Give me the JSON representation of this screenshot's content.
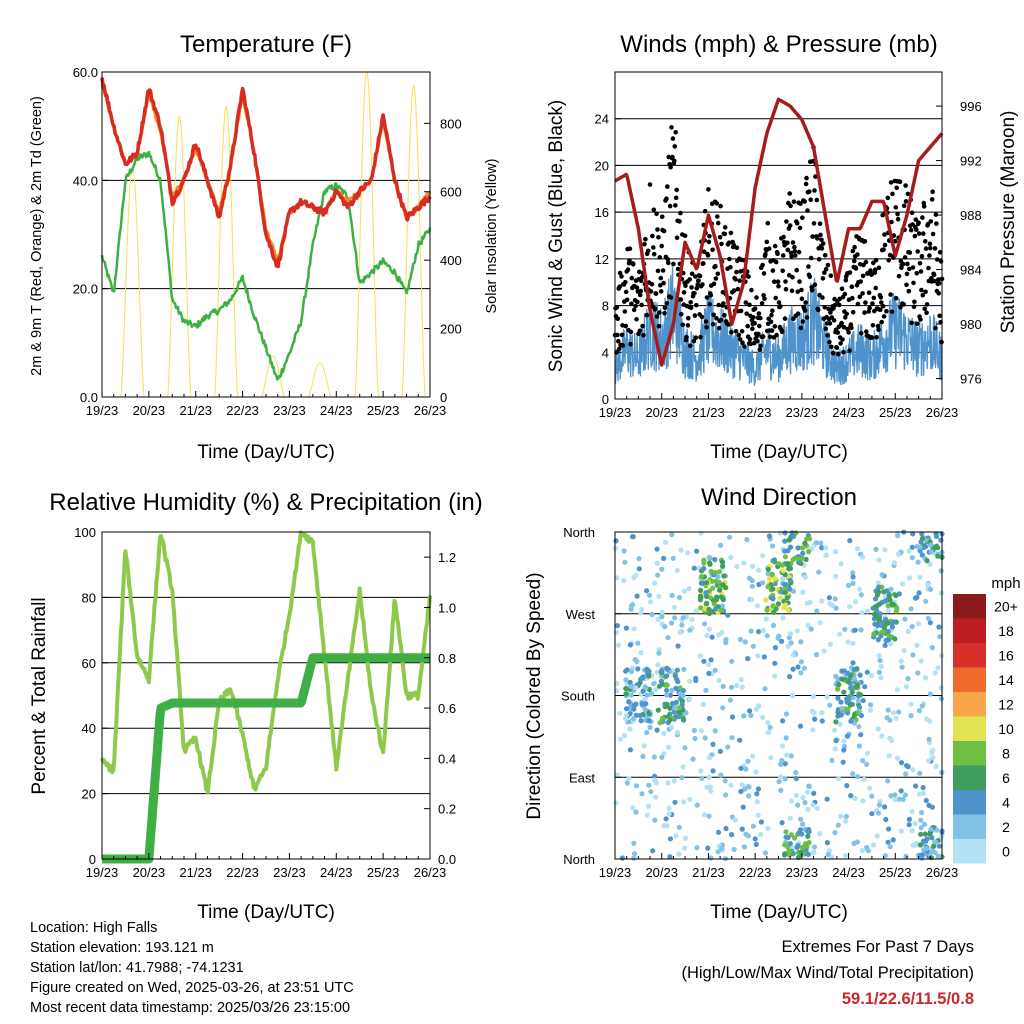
{
  "x_ticks": [
    "19/23",
    "20/23",
    "21/23",
    "22/23",
    "23/23",
    "24/23",
    "25/23",
    "26/23"
  ],
  "panels": {
    "temperature": {
      "title": "Temperature (F)",
      "xlabel": "Time (Day/UTC)",
      "ylabel_left": "2m & 9m T (Red, Orange) & 2m Td (Green)",
      "ylabel_right": "Solar Insolation (Yellow)",
      "left_ticks": [
        "0.0",
        "20.0",
        "40.0",
        "60.0"
      ],
      "right_ticks": [
        "0",
        "200",
        "400",
        "600",
        "800"
      ]
    },
    "winds": {
      "title": "Winds (mph) & Pressure (mb)",
      "xlabel": "Time (Day/UTC)",
      "ylabel_left": "Sonic Wind & Gust (Blue, Black)",
      "ylabel_right": "Station Pressure (Maroon)",
      "left_ticks": [
        "0",
        "4",
        "8",
        "12",
        "16",
        "20",
        "24"
      ],
      "right_ticks": [
        "976",
        "980",
        "984",
        "988",
        "992",
        "996"
      ]
    },
    "humidity": {
      "title": "Relative Humidity (%) & Precipitation (in)",
      "xlabel": "Time (Day/UTC)",
      "ylabel_left": "Percent & Total Rainfall",
      "left_ticks": [
        "0",
        "20",
        "40",
        "60",
        "80",
        "100"
      ],
      "right_ticks": [
        "0.0",
        "0.2",
        "0.4",
        "0.6",
        "0.8",
        "1.0",
        "1.2"
      ]
    },
    "direction": {
      "title": "Wind Direction",
      "xlabel": "Time (Day/UTC)",
      "ylabel_left": "Direction (Colored By Speed)",
      "left_ticks": [
        "North",
        "East",
        "South",
        "West",
        "North"
      ],
      "colorbar_title": "mph",
      "colorbar_labels": [
        "0",
        "2",
        "4",
        "6",
        "8",
        "10",
        "12",
        "14",
        "16",
        "18",
        "20+"
      ],
      "colorbar_colors": [
        "#b3e1f5",
        "#82c1e8",
        "#4f93cc",
        "#3f9d5d",
        "#6fbf45",
        "#e3e253",
        "#f7a64a",
        "#ef6a2c",
        "#d7302b",
        "#bc1e23",
        "#8a1a1c"
      ]
    }
  },
  "colors": {
    "temp_2m": "#d62d20",
    "temp_9m": "#f4842c",
    "dewpoint": "#3cb043",
    "solar": "#f7df5a",
    "wind": "#4f93cc",
    "gust": "#000000",
    "pressure": "#a51c1c",
    "humidity": "#8fc94c",
    "rain": "#3fae44",
    "extremes": "#c8282d"
  },
  "info": {
    "location": "Location: High Falls",
    "elevation": "Station elevation: 193.121 m",
    "latlon": "Station lat/lon: 41.7988; -74.1231",
    "created": "Figure created on Wed, 2025-03-26, at 23:51 UTC",
    "recent": "Most recent data timestamp: 2025/03/26 23:15:00"
  },
  "extremes": {
    "line1": "Extremes For Past 7 Days",
    "line2": "(High/Low/Max Wind/Total Precipitation)",
    "values": "59.1/22.6/11.5/0.8"
  },
  "chart_data": [
    {
      "type": "line",
      "title": "Temperature (F)",
      "x_days": [
        0,
        0.25,
        0.5,
        0.75,
        1,
        1.25,
        1.5,
        1.75,
        2,
        2.25,
        2.5,
        2.75,
        3,
        3.25,
        3.5,
        3.75,
        4,
        4.25,
        4.5,
        4.75,
        5,
        5.25,
        5.5,
        5.75,
        6,
        6.25,
        6.5,
        6.75,
        7
      ],
      "series": [
        {
          "name": "2m T",
          "values": [
            59,
            50,
            43,
            45,
            57,
            50,
            36,
            40,
            47,
            40,
            33,
            43,
            57,
            45,
            30,
            24,
            34,
            36,
            35,
            34,
            38,
            35,
            38,
            40,
            52,
            40,
            33,
            35,
            37
          ]
        },
        {
          "name": "9m T",
          "values": [
            58,
            50,
            43,
            45,
            56,
            49,
            37,
            40,
            46,
            40,
            34,
            43,
            56,
            45,
            31,
            25,
            34,
            36,
            35,
            34,
            38,
            36,
            38,
            40,
            51,
            40,
            33,
            35,
            38
          ]
        },
        {
          "name": "2m Td",
          "values": [
            26,
            19,
            40,
            44,
            45,
            40,
            18,
            14,
            13,
            15,
            16,
            18,
            22,
            15,
            9,
            3,
            8,
            14,
            28,
            38,
            39,
            37,
            21,
            23,
            25,
            23,
            19,
            28,
            31
          ]
        }
      ],
      "solar_peaks_wm2": [
        820,
        670,
        820,
        850,
        120,
        100,
        950,
        910
      ],
      "ylim": [
        0,
        60
      ],
      "solar_ylim": [
        0,
        950
      ]
    },
    {
      "type": "scatter",
      "title": "Winds (mph) & Pressure (mb)",
      "series": [
        {
          "name": "Sonic Wind",
          "typical_mph": [
            3,
            5,
            4,
            7,
            6,
            9,
            5,
            4,
            7,
            6,
            5,
            4,
            3,
            5,
            4,
            6,
            6,
            8,
            5,
            3,
            4,
            5,
            4,
            6,
            7,
            6,
            5,
            6,
            4
          ]
        },
        {
          "name": "Gust",
          "typical_mph": [
            6,
            10,
            8,
            14,
            11,
            18,
            10,
            8,
            13,
            12,
            10,
            9,
            6,
            11,
            9,
            13,
            12,
            16,
            9,
            6,
            8,
            11,
            8,
            12,
            15,
            13,
            11,
            14,
            9
          ]
        },
        {
          "name": "Station Pressure",
          "values_mb": [
            990.5,
            991,
            987,
            981,
            977,
            980,
            986,
            984,
            988,
            985,
            980,
            983,
            990,
            994,
            996.5,
            996,
            995,
            993,
            988,
            983,
            987,
            987,
            989,
            989,
            985,
            988,
            992,
            993,
            994
          ]
        }
      ],
      "ylim": [
        0,
        28
      ],
      "pressure_ylim": [
        974.5,
        998.5
      ]
    },
    {
      "type": "line",
      "title": "Relative Humidity (%) & Precipitation (in)",
      "series": [
        {
          "name": "Relative Humidity",
          "values": [
            30,
            27,
            95,
            62,
            55,
            100,
            82,
            33,
            37,
            20,
            48,
            52,
            38,
            21,
            28,
            55,
            75,
            100,
            97,
            62,
            28,
            55,
            82,
            50,
            32,
            80,
            50,
            50,
            80
          ]
        },
        {
          "name": "Total Precipitation",
          "values": [
            0,
            0,
            0,
            0,
            0,
            0.6,
            0.62,
            0.62,
            0.62,
            0.62,
            0.62,
            0.62,
            0.62,
            0.62,
            0.62,
            0.62,
            0.62,
            0.62,
            0.8,
            0.8,
            0.8,
            0.8,
            0.8,
            0.8,
            0.8,
            0.8,
            0.8,
            0.8,
            0.8
          ]
        }
      ],
      "ylim": [
        0,
        100
      ],
      "precip_ylim": [
        0,
        1.3
      ]
    },
    {
      "type": "scatter",
      "title": "Wind Direction",
      "y_categories": [
        "North",
        "East",
        "South",
        "West",
        "North"
      ],
      "clusters": [
        {
          "day": 0.5,
          "direction": "South",
          "speed": 4
        },
        {
          "day": 1.2,
          "direction": "South",
          "speed": 6
        },
        {
          "day": 2.1,
          "direction": "West-Northwest",
          "speed": 8
        },
        {
          "day": 3.5,
          "direction": "West-Northwest",
          "speed": 8
        },
        {
          "day": 3.9,
          "direction": "North",
          "speed": 7
        },
        {
          "day": 5.0,
          "direction": "South",
          "speed": 6
        },
        {
          "day": 5.8,
          "direction": "West",
          "speed": 7
        },
        {
          "day": 6.8,
          "direction": "North",
          "speed": 5
        }
      ]
    }
  ]
}
